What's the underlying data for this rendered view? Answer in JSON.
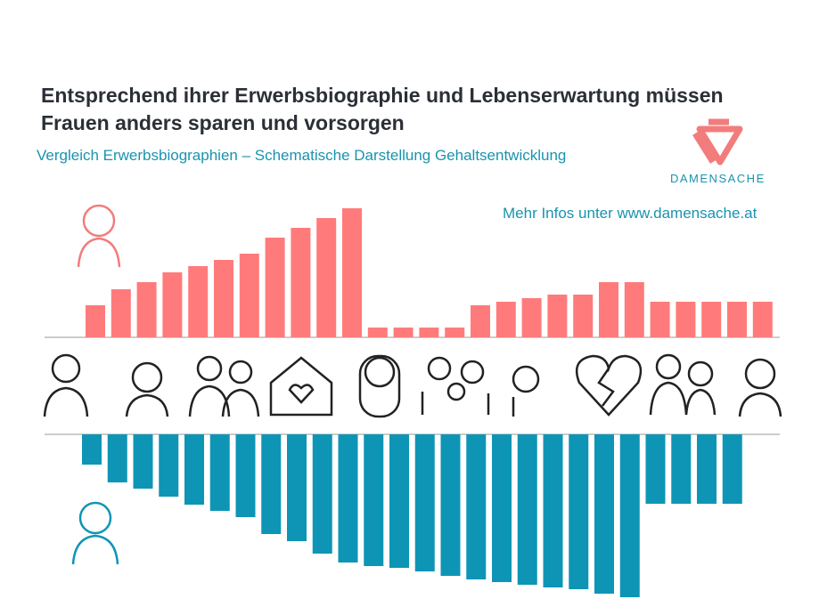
{
  "title": "Entsprechend ihrer Erwerbsbiographie und Lebenserwartung müssen Frauen anders sparen und vorsorgen",
  "subtitle": "Vergleich Erwerbsbiographien – Schematische Darstellung Gehaltsentwicklung",
  "logo": "DAMENSACHE",
  "note": "Mehr Infos unter www.damensache.at",
  "chart_data": {
    "type": "bar",
    "series": [
      {
        "color": "#ff7b7b",
        "values": [
          36,
          54,
          62,
          73,
          80,
          87,
          94,
          112,
          123,
          134,
          145,
          11,
          11,
          11,
          11,
          36,
          40,
          44,
          48,
          48,
          62,
          62,
          40,
          40,
          40,
          40,
          40
        ]
      },
      {
        "color": "#0e95b5",
        "values": [
          34,
          54,
          61,
          70,
          79,
          86,
          93,
          112,
          120,
          134,
          144,
          148,
          150,
          154,
          159,
          163,
          166,
          169,
          172,
          174,
          179,
          183,
          78,
          78,
          78,
          78
        ]
      }
    ]
  }
}
